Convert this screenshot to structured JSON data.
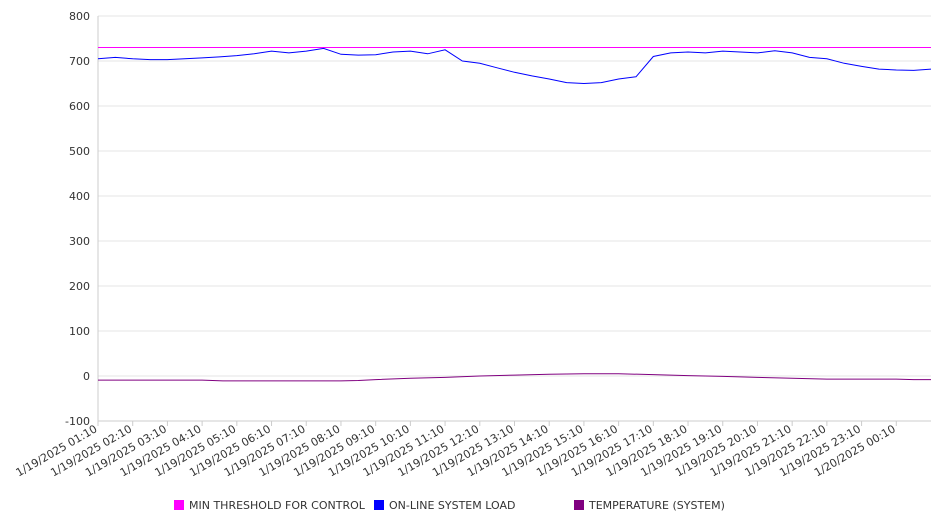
{
  "chart_data": {
    "type": "line",
    "title": "",
    "xlabel": "",
    "ylabel": "",
    "ylim": [
      -100,
      800
    ],
    "yticks": [
      800,
      700,
      600,
      500,
      400,
      300,
      200,
      100,
      0,
      -100
    ],
    "grid": true,
    "legend_position": "bottom",
    "categories": [
      "1/19/2025 01:10",
      "1/19/2025 02:10",
      "1/19/2025 03:10",
      "1/19/2025 04:10",
      "1/19/2025 05:10",
      "1/19/2025 06:10",
      "1/19/2025 07:10",
      "1/19/2025 08:10",
      "1/19/2025 09:10",
      "1/19/2025 10:10",
      "1/19/2025 11:10",
      "1/19/2025 12:10",
      "1/19/2025 13:10",
      "1/19/2025 14:10",
      "1/19/2025 15:10",
      "1/19/2025 16:10",
      "1/19/2025 17:10",
      "1/19/2025 18:10",
      "1/19/2025 19:10",
      "1/19/2025 20:10",
      "1/19/2025 21:10",
      "1/19/2025 22:10",
      "1/19/2025 23:10",
      "1/20/2025 00:10"
    ],
    "series": [
      {
        "name": "MIN THRESHOLD FOR CONTROL",
        "color": "#ff00ff",
        "x": [
          0,
          24
        ],
        "values": [
          730,
          730
        ]
      },
      {
        "name": "ON-LINE SYSTEM LOAD",
        "color": "#0000ff",
        "x": [
          0,
          0.5,
          1,
          1.5,
          2,
          2.5,
          3,
          3.5,
          4,
          4.5,
          5,
          5.5,
          6,
          6.5,
          7,
          7.5,
          8,
          8.5,
          9,
          9.5,
          10,
          10.5,
          11,
          11.5,
          12,
          12.5,
          13,
          13.5,
          14,
          14.5,
          15,
          15.5,
          16,
          16.5,
          17,
          17.5,
          18,
          18.5,
          19,
          19.5,
          20,
          20.5,
          21,
          21.5,
          22,
          22.5,
          23,
          23.5,
          24
        ],
        "values": [
          705,
          708,
          705,
          703,
          703,
          705,
          707,
          709,
          712,
          716,
          722,
          718,
          722,
          728,
          715,
          713,
          714,
          720,
          722,
          716,
          725,
          700,
          695,
          685,
          675,
          667,
          660,
          652,
          650,
          652,
          660,
          665,
          710,
          718,
          720,
          718,
          722,
          720,
          718,
          723,
          718,
          708,
          705,
          695,
          688,
          682,
          680,
          679,
          682
        ]
      },
      {
        "name": "TEMPERATURE (SYSTEM)",
        "color": "#800080",
        "x": [
          0,
          1,
          2,
          3,
          3.6,
          4,
          5,
          6,
          7,
          7.5,
          8,
          9,
          10,
          11,
          12,
          13,
          14,
          15,
          16,
          17,
          18,
          19,
          20,
          21,
          22,
          23,
          23.5,
          24
        ],
        "values": [
          -9,
          -9,
          -9,
          -9,
          -11,
          -11,
          -11,
          -11,
          -11,
          -10,
          -8,
          -5,
          -3,
          0,
          2,
          4,
          5,
          5,
          3,
          1,
          -1,
          -3,
          -5,
          -7,
          -7,
          -7,
          -8,
          -8
        ]
      }
    ]
  }
}
